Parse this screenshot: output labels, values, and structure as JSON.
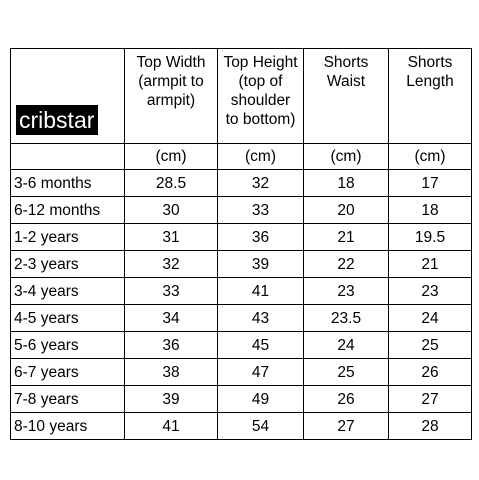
{
  "brand": "cribstar",
  "headers": [
    "Top Width\n(armpit to\narmpit)",
    "Top Height\n(top of\nshoulder\nto bottom)",
    "Shorts\nWaist",
    "Shorts\nLength"
  ],
  "header_lines": [
    [
      "Top Width",
      "(armpit to",
      "armpit)"
    ],
    [
      "Top Height",
      "(top of",
      "shoulder",
      "to bottom)"
    ],
    [
      "Shorts",
      "Waist"
    ],
    [
      "Shorts",
      "Length"
    ]
  ],
  "unit": "(cm)",
  "rows": [
    {
      "size": "3-6 months",
      "top_width": "28.5",
      "top_height": "32",
      "shorts_waist": "18",
      "shorts_length": "17"
    },
    {
      "size": "6-12 months",
      "top_width": "30",
      "top_height": "33",
      "shorts_waist": "20",
      "shorts_length": "18"
    },
    {
      "size": "1-2 years",
      "top_width": "31",
      "top_height": "36",
      "shorts_waist": "21",
      "shorts_length": "19.5"
    },
    {
      "size": "2-3 years",
      "top_width": "32",
      "top_height": "39",
      "shorts_waist": "22",
      "shorts_length": "21"
    },
    {
      "size": "3-4 years",
      "top_width": "33",
      "top_height": "41",
      "shorts_waist": "23",
      "shorts_length": "23"
    },
    {
      "size": "4-5 years",
      "top_width": "34",
      "top_height": "43",
      "shorts_waist": "23.5",
      "shorts_length": "24"
    },
    {
      "size": "5-6 years",
      "top_width": "36",
      "top_height": "45",
      "shorts_waist": "24",
      "shorts_length": "25"
    },
    {
      "size": "6-7 years",
      "top_width": "38",
      "top_height": "47",
      "shorts_waist": "25",
      "shorts_length": "26"
    },
    {
      "size": "7-8 years",
      "top_width": "39",
      "top_height": "49",
      "shorts_waist": "26",
      "shorts_length": "27"
    },
    {
      "size": "8-10 years",
      "top_width": "41",
      "top_height": "54",
      "shorts_waist": "27",
      "shorts_length": "28"
    }
  ]
}
